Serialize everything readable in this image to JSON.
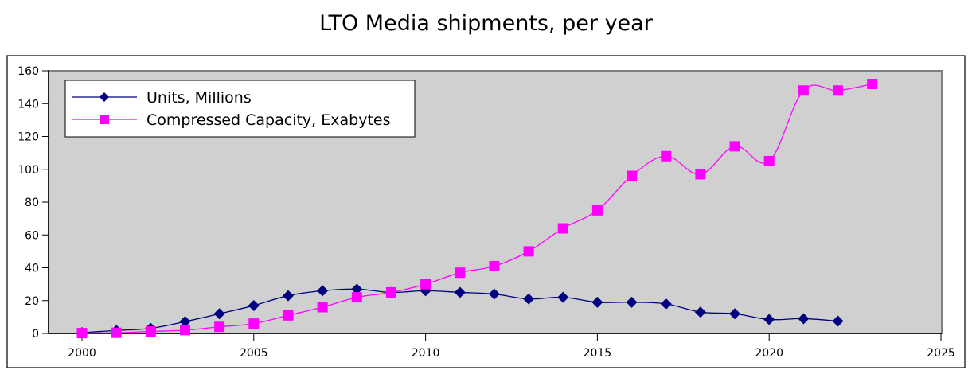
{
  "chart_data": {
    "type": "line",
    "title": "LTO Media shipments, per year",
    "xlabel": "",
    "ylabel": "",
    "xlim": [
      2000,
      2025
    ],
    "ylim": [
      0,
      160
    ],
    "xticks": [
      2000,
      2005,
      2010,
      2015,
      2020,
      2025
    ],
    "yticks": [
      0,
      20,
      40,
      60,
      80,
      100,
      120,
      140,
      160
    ],
    "grid": false,
    "legend_position": "top-left",
    "smooth": true,
    "series": [
      {
        "name": "Units, Millions",
        "color": "#000080",
        "marker": "diamond",
        "x": [
          2000,
          2001,
          2002,
          2003,
          2004,
          2005,
          2006,
          2007,
          2008,
          2009,
          2010,
          2011,
          2012,
          2013,
          2014,
          2015,
          2016,
          2017,
          2018,
          2019,
          2020,
          2021,
          2022
        ],
        "values": [
          0.5,
          1.8,
          3.1,
          7.2,
          12,
          17,
          23,
          26,
          27,
          25,
          26,
          25,
          24,
          21,
          22,
          19,
          19,
          18,
          13,
          12,
          8.5,
          9,
          7.5
        ]
      },
      {
        "name": "Compressed Capacity, Exabytes",
        "color": "#ff00ff",
        "marker": "square",
        "x": [
          2000,
          2001,
          2002,
          2003,
          2004,
          2005,
          2006,
          2007,
          2008,
          2009,
          2010,
          2011,
          2012,
          2013,
          2014,
          2015,
          2016,
          2017,
          2018,
          2019,
          2020,
          2021,
          2022,
          2023
        ],
        "values": [
          0.2,
          0.4,
          1.2,
          2,
          4,
          6,
          11,
          16,
          22,
          25,
          30,
          37,
          41,
          50,
          64,
          75,
          96,
          108,
          97,
          114,
          105,
          148,
          148,
          152
        ]
      }
    ],
    "plot_background": "#d0d0d0"
  }
}
